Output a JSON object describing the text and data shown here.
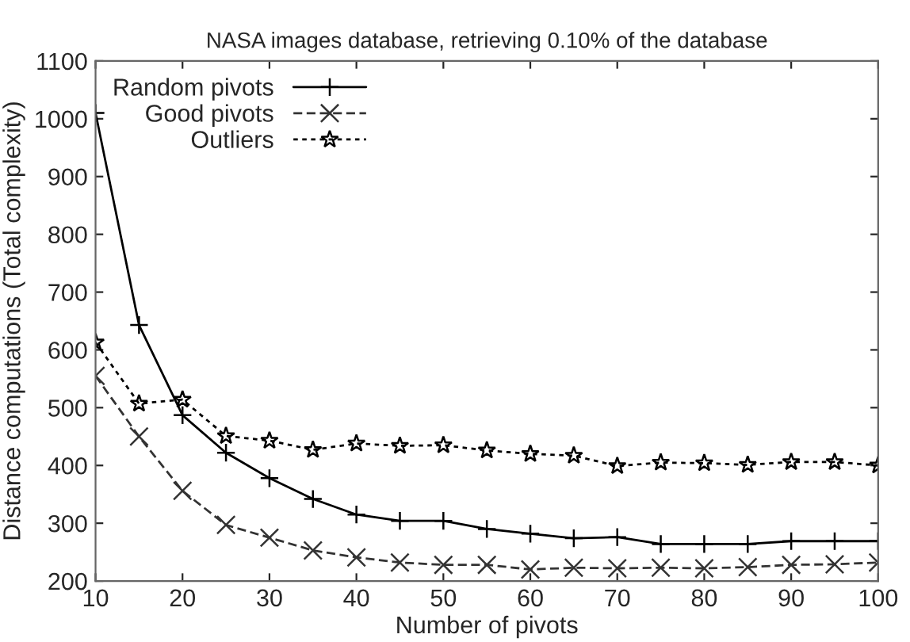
{
  "chart_data": {
    "type": "line",
    "title": "NASA images database, retrieving 0.10% of the database",
    "xlabel": "Number of pivots",
    "ylabel": "Distance computations (Total complexity)",
    "x": [
      10,
      15,
      20,
      25,
      30,
      35,
      40,
      45,
      50,
      55,
      60,
      65,
      70,
      75,
      80,
      85,
      90,
      95,
      100
    ],
    "series": [
      {
        "name": "Random pivots",
        "color": "#000000",
        "marker": "plus",
        "line_style": "solid",
        "values": [
          1010,
          643,
          487,
          422,
          378,
          342,
          315,
          304,
          304,
          290,
          282,
          274,
          276,
          264,
          264,
          264,
          269,
          269,
          269
        ]
      },
      {
        "name": "Good pivots",
        "color": "#333333",
        "marker": "cross",
        "line_style": "dashed",
        "values": [
          555,
          450,
          356,
          297,
          275,
          253,
          241,
          232,
          228,
          228,
          220,
          223,
          222,
          223,
          222,
          224,
          228,
          229,
          232
        ]
      },
      {
        "name": "Outliers",
        "color": "#000000",
        "marker": "star",
        "line_style": "dotted",
        "values": [
          613,
          507,
          514,
          451,
          443,
          427,
          438,
          434,
          435,
          426,
          420,
          417,
          399,
          405,
          404,
          401,
          406,
          406,
          400
        ]
      }
    ],
    "xlim": [
      10,
      100
    ],
    "xticks": [
      10,
      20,
      30,
      40,
      50,
      60,
      70,
      80,
      90,
      100
    ],
    "ylim": [
      200,
      1100
    ],
    "yticks": [
      200,
      300,
      400,
      500,
      600,
      700,
      800,
      900,
      1000,
      1100
    ],
    "grid": false,
    "legend": "top left"
  }
}
